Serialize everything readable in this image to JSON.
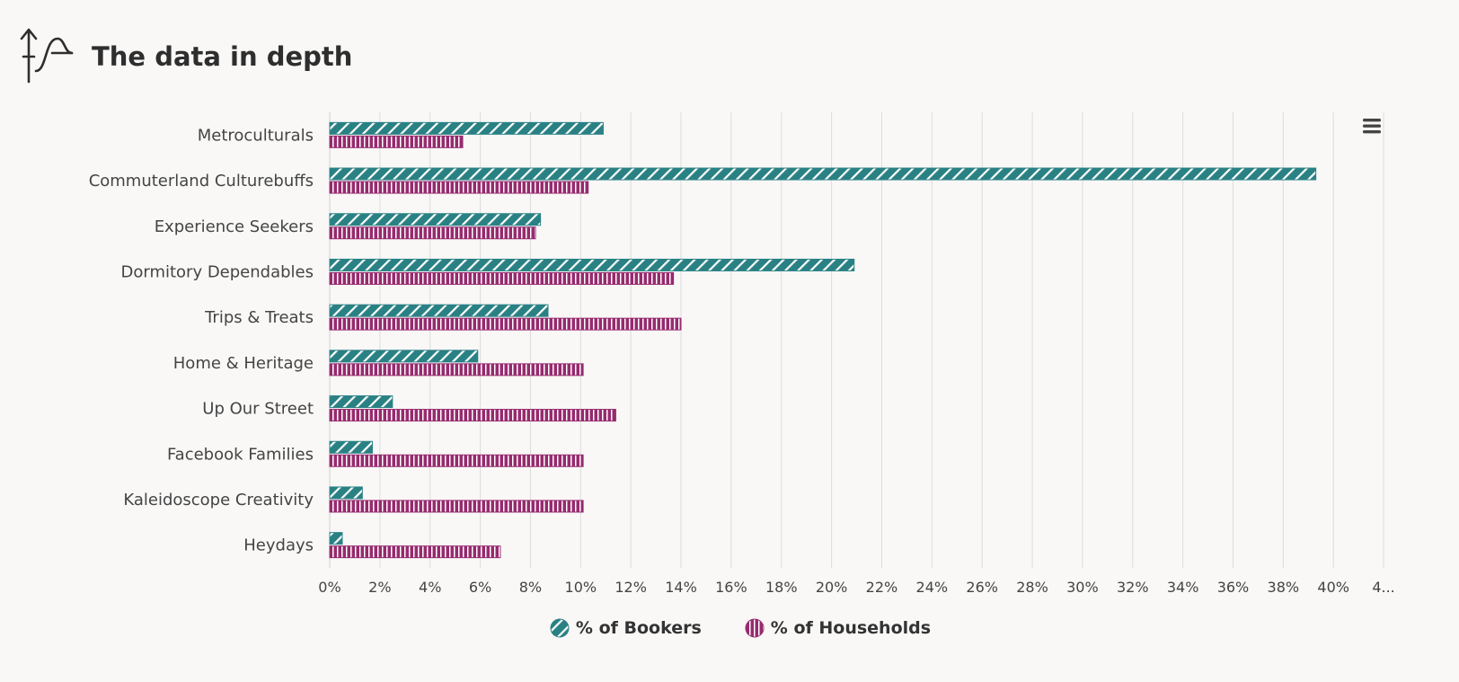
{
  "header": {
    "title": "The data in depth",
    "icon": "chart-growth-icon"
  },
  "chart_data": {
    "type": "bar",
    "orientation": "horizontal",
    "categories": [
      "Metroculturals",
      "Commuterland Culturebuffs",
      "Experience Seekers",
      "Dormitory Dependables",
      "Trips & Treats",
      "Home & Heritage",
      "Up Our Street",
      "Facebook Families",
      "Kaleidoscope Creativity",
      "Heydays"
    ],
    "series": [
      {
        "name": "% of Bookers",
        "color": "#2a8184",
        "pattern": "diagonal-stripes",
        "values": [
          10.9,
          39.3,
          8.4,
          20.9,
          8.7,
          5.9,
          2.5,
          1.7,
          1.3,
          0.5
        ]
      },
      {
        "name": "% of Households",
        "color": "#962b6e",
        "pattern": "vertical-stripes",
        "values": [
          5.3,
          10.3,
          8.2,
          13.7,
          14.0,
          10.1,
          11.4,
          10.1,
          10.1,
          6.8
        ]
      }
    ],
    "xlim": [
      0,
      42
    ],
    "xticks": [
      "0%",
      "2%",
      "4%",
      "6%",
      "8%",
      "10%",
      "12%",
      "14%",
      "16%",
      "18%",
      "20%",
      "22%",
      "24%",
      "26%",
      "28%",
      "30%",
      "32%",
      "34%",
      "36%",
      "38%",
      "40%",
      "4..."
    ],
    "grid": true,
    "legend_position": "bottom-center"
  },
  "menu": {
    "icon": "hamburger-menu-icon"
  }
}
